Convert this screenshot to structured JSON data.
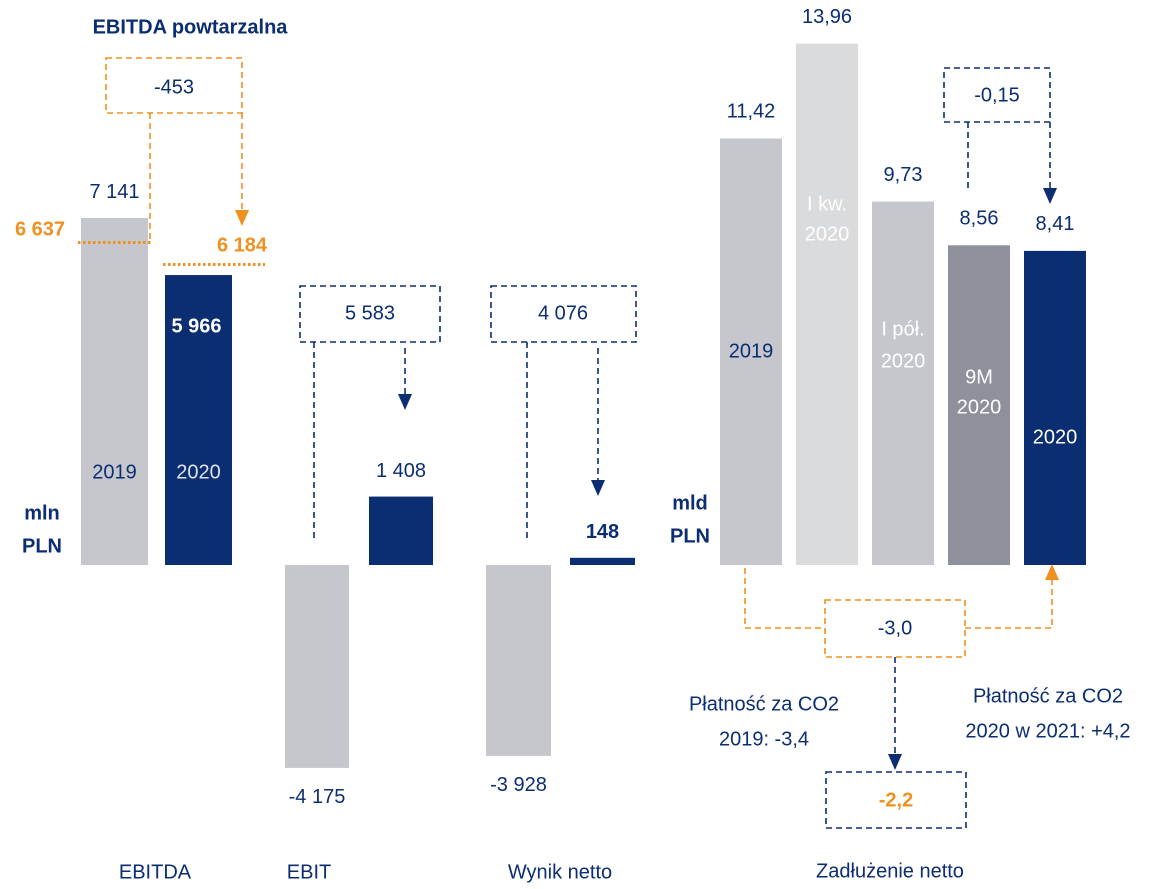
{
  "chart_data": [
    {
      "type": "bar",
      "title": "EBITDA powtarzalna",
      "unit_lines": [
        "mln",
        "PLN"
      ],
      "categories": [
        "EBITDA",
        "EBIT",
        "Wynik netto"
      ],
      "series": [
        {
          "name": "2019",
          "color": "#c5c7cc",
          "values": [
            7141,
            -4175,
            -3928
          ],
          "value_labels": [
            "7 141",
            "-4 175",
            "-3 928"
          ]
        },
        {
          "name": "2020",
          "color": "#0b2d72",
          "values": [
            5966,
            1408,
            148
          ],
          "value_labels": [
            "5 966",
            "1 408",
            "148"
          ]
        }
      ],
      "recurring": {
        "color": "#f0901e",
        "values": [
          6637,
          6184
        ],
        "value_labels": [
          "6 637",
          "6 184"
        ],
        "change": -453,
        "change_label": "-453"
      },
      "changes": {
        "values": [
          null,
          5583,
          4076
        ],
        "value_labels": [
          null,
          "5 583",
          "4 076"
        ]
      }
    },
    {
      "type": "bar",
      "xlabel": "Zadłużenie netto",
      "unit_lines": [
        "mld",
        "PLN"
      ],
      "categories": [
        [
          "2019"
        ],
        [
          "I kw.",
          "2020"
        ],
        [
          "I pół.",
          "2020"
        ],
        [
          "9M",
          "2020"
        ],
        [
          "2020"
        ]
      ],
      "values": [
        11.42,
        13.96,
        9.73,
        8.56,
        8.41
      ],
      "value_labels": [
        "11,42",
        "13,96",
        "9,73",
        "8,56",
        "8,41"
      ],
      "colors": [
        "#c5c7cc",
        "#dadbdd",
        "#c5c7cc",
        "#8e909c",
        "#0b2d72"
      ],
      "change": -0.15,
      "change_label": "-0,15",
      "co2_change": -3.0,
      "co2_change_label": "-3,0",
      "adjusted_change": -2.2,
      "adjusted_change_label": "-2,2",
      "notes": [
        [
          "Płatność za CO2",
          "2019: -3,4"
        ],
        [
          "Płatność za CO2",
          "2020 w 2021: +4,2"
        ]
      ]
    }
  ]
}
